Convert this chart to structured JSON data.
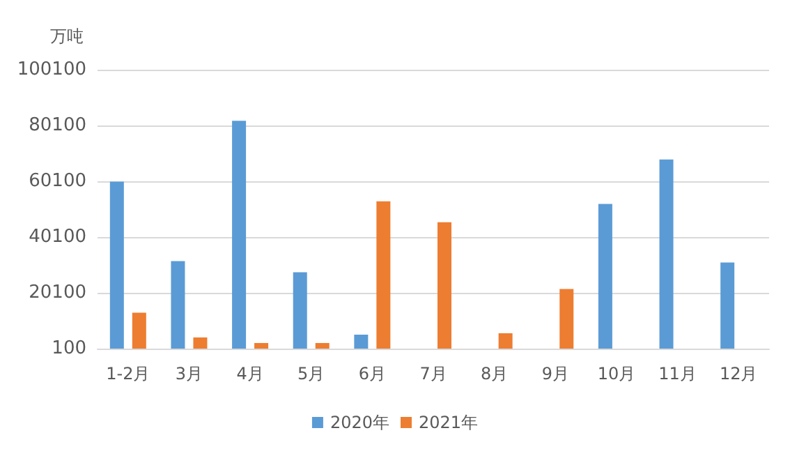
{
  "chart_data": {
    "type": "bar",
    "ylabel": "万吨",
    "categories": [
      "1-2月",
      "3月",
      "4月",
      "5月",
      "6月",
      "7月",
      "8月",
      "9月",
      "10月",
      "11月",
      "12月"
    ],
    "series": [
      {
        "name": "2020年",
        "color": "#5b9bd5",
        "values": [
          60000,
          31500,
          81800,
          27500,
          5100,
          null,
          null,
          null,
          52000,
          67900,
          31000
        ]
      },
      {
        "name": "2021年",
        "color": "#ed7d31",
        "values": [
          13000,
          4100,
          2100,
          2100,
          52900,
          45400,
          5600,
          21500,
          null,
          null,
          null
        ]
      }
    ],
    "ylim": [
      100,
      100100
    ],
    "yticks": [
      100,
      20100,
      40100,
      60100,
      80100,
      100100
    ],
    "grid": "y",
    "legend": "bottom"
  }
}
